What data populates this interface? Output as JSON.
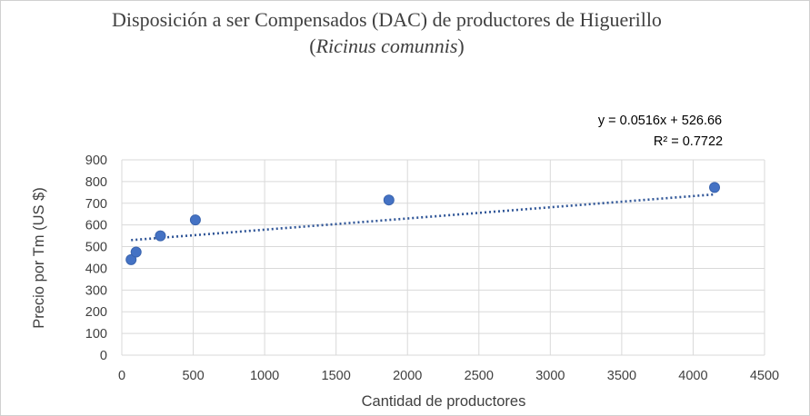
{
  "chart_data": {
    "type": "scatter",
    "title": "Disposición a ser Compensados (DAC) de productores de Higuerillo",
    "subtitle_open": "(",
    "subtitle_italic": "Ricinus comunnis",
    "subtitle_close": ")",
    "xlabel": "Cantidad de productores",
    "ylabel": "Precio  por Tm (US $)",
    "xlim": [
      0,
      4500
    ],
    "ylim": [
      0,
      900
    ],
    "x_ticks": [
      "0",
      "500",
      "1000",
      "1500",
      "2000",
      "2500",
      "3000",
      "3500",
      "4000",
      "4500"
    ],
    "y_ticks": [
      "0",
      "100",
      "200",
      "300",
      "400",
      "500",
      "600",
      "700",
      "800",
      "900"
    ],
    "grid": true,
    "series": [
      {
        "x": [
          65,
          100,
          270,
          515,
          1870,
          4150
        ],
        "y": [
          440,
          475,
          550,
          623,
          715,
          773
        ],
        "color": "#4472c4"
      }
    ],
    "trendline": {
      "type": "linear",
      "slope": 0.0516,
      "intercept": 526.66,
      "x_range": [
        65,
        4150
      ],
      "color": "#2f5597",
      "style": "dotted",
      "equation": "y = 0.0516x + 526.66",
      "r2": "R² = 0.7722"
    }
  }
}
